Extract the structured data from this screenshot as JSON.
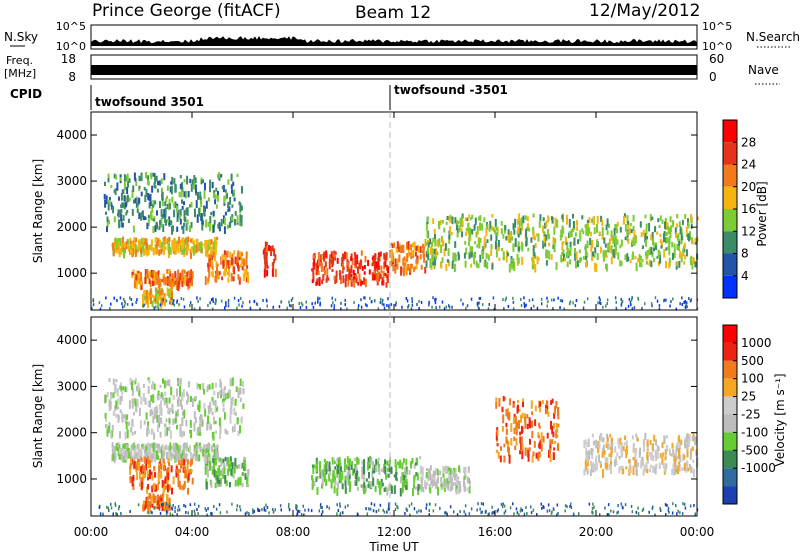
{
  "header": {
    "station": "Prince George (fitACF)",
    "beam": "Beam 12",
    "date": "12/May/2012"
  },
  "strip": {
    "nsky_label": "N.Sky",
    "nsky_ticks": [
      "10^5",
      "10^0"
    ],
    "nsearch_label": "N.Search",
    "nsearch_ticks": [
      "10^5",
      "10^0"
    ],
    "freq_label": "Freq.",
    "freq_unit": "[MHz]",
    "freq_ticks": [
      "18",
      "8"
    ],
    "nave_label": "Nave",
    "nave_ticks": [
      "60",
      "0"
    ],
    "cpid_label": "CPID",
    "cpid_1": "twofsound 3501",
    "cpid_2": "twofsound -3501"
  },
  "chart_data": [
    {
      "type": "heatmap",
      "name": "power",
      "ylabel": "Slant Range [km]",
      "xlabel": "Time UT",
      "y_ticks": [
        "1000",
        "2000",
        "3000",
        "4000"
      ],
      "ylim": [
        200,
        4500
      ],
      "colorbar_label": "Power [dB]",
      "colorbar_ticks": [
        "4",
        "8",
        "12",
        "16",
        "20",
        "24",
        "28"
      ],
      "colors": [
        "#0033ff",
        "#2255aa",
        "#3d8a6a",
        "#7ccc33",
        "#f5b50f",
        "#f27a1a",
        "#e63319",
        "#ff0000"
      ],
      "bands": [
        {
          "t0": 0.8,
          "t1": 5.0,
          "r0": 1500,
          "r1": 1800,
          "level": 4
        },
        {
          "t0": 1.5,
          "t1": 4.0,
          "r0": 800,
          "r1": 1100,
          "level": 5
        },
        {
          "t0": 2.0,
          "t1": 3.2,
          "r0": 400,
          "r1": 700,
          "level": 4
        },
        {
          "t0": 4.5,
          "t1": 6.2,
          "r0": 900,
          "r1": 1500,
          "level": 5
        },
        {
          "t0": 6.8,
          "t1": 7.3,
          "r0": 1000,
          "r1": 1700,
          "level": 6
        },
        {
          "t0": 8.7,
          "t1": 11.8,
          "r0": 800,
          "r1": 1500,
          "level": 6
        },
        {
          "t0": 11.8,
          "t1": 13.2,
          "r0": 1100,
          "r1": 1700,
          "level": 5
        },
        {
          "t0": 13.2,
          "t1": 24.0,
          "r0": 1200,
          "r1": 2300,
          "level": 3
        },
        {
          "t0": 0.5,
          "t1": 6.0,
          "r0": 2000,
          "r1": 3200,
          "level": 2
        }
      ]
    },
    {
      "type": "heatmap",
      "name": "velocity",
      "ylabel": "Slant Range [km]",
      "xlabel": "Time UT",
      "x_ticks": [
        "00:00",
        "04:00",
        "08:00",
        "12:00",
        "16:00",
        "20:00",
        "00:00"
      ],
      "y_ticks": [
        "1000",
        "2000",
        "3000",
        "4000"
      ],
      "ylim": [
        200,
        4500
      ],
      "colorbar_label": "Velocity [m s⁻¹]",
      "colorbar_ticks": [
        "1000",
        "500",
        "100",
        "25",
        "-25",
        "-100",
        "-500",
        "-1000"
      ],
      "colors": [
        "#1a3fb0",
        "#2e6b9e",
        "#3d8a55",
        "#66cc33",
        "#bdbdbd",
        "#cccccc",
        "#f5a623",
        "#f07a1e",
        "#ee2211",
        "#ff0000"
      ],
      "bands": [
        {
          "t0": 0.8,
          "t1": 5.0,
          "r0": 1500,
          "r1": 1800,
          "level": 4
        },
        {
          "t0": 1.5,
          "t1": 4.0,
          "r0": 800,
          "r1": 1500,
          "level": 7
        },
        {
          "t0": 2.0,
          "t1": 3.2,
          "r0": 400,
          "r1": 700,
          "level": 7
        },
        {
          "t0": 4.5,
          "t1": 6.2,
          "r0": 900,
          "r1": 1500,
          "level": 3
        },
        {
          "t0": 8.7,
          "t1": 13.0,
          "r0": 800,
          "r1": 1500,
          "level": 3
        },
        {
          "t0": 13.0,
          "t1": 15.0,
          "r0": 800,
          "r1": 1300,
          "level": 4
        },
        {
          "t0": 16.0,
          "t1": 18.5,
          "r0": 1500,
          "r1": 2800,
          "level": 7
        },
        {
          "t0": 19.5,
          "t1": 24.0,
          "r0": 1200,
          "r1": 2000,
          "level": 5
        },
        {
          "t0": 0.5,
          "t1": 6.0,
          "r0": 2000,
          "r1": 3200,
          "level": 4
        }
      ]
    }
  ]
}
